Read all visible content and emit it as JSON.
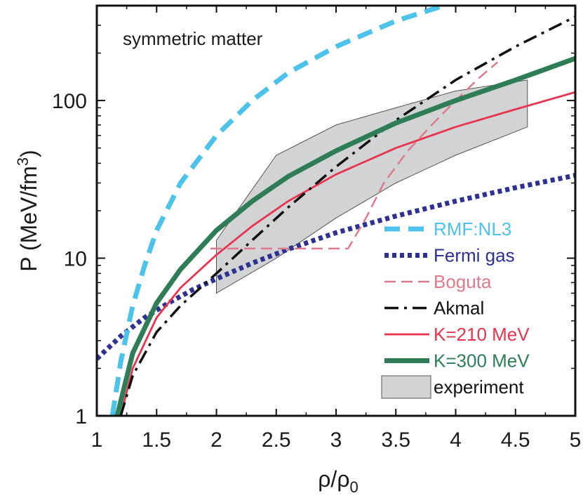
{
  "chart_data": {
    "type": "line",
    "title": "",
    "annotation": "symmetric matter",
    "xlabel": {
      "main": "ρ/ρ",
      "sub": "0"
    },
    "ylabel": {
      "main": "P (MeV/fm",
      "sup": "3",
      "close": ")"
    },
    "xlim": [
      1,
      5
    ],
    "ylim": [
      1,
      400
    ],
    "yscale": "log",
    "xticks": [
      1,
      1.5,
      2,
      2.5,
      3,
      3.5,
      4,
      4.5,
      5
    ],
    "xtick_labels": [
      "1",
      "1.5",
      "2",
      "2.5",
      "3",
      "3.5",
      "4",
      "4.5",
      "5"
    ],
    "yticks": [
      1,
      10,
      100
    ],
    "ytick_labels": [
      "1",
      "10",
      "100"
    ],
    "legend_position": "bottom-right",
    "series": [
      {
        "name": "RMF:NL3",
        "color": "#4dc3ec",
        "style": "dashed-thick",
        "x": [
          1.13,
          1.2,
          1.3,
          1.4,
          1.5,
          1.7,
          2.0,
          2.3,
          2.6,
          3.0,
          3.5,
          3.9
        ],
        "y": [
          1.0,
          2.2,
          5.0,
          9.0,
          15.0,
          30.0,
          60.0,
          100.0,
          150.0,
          220.0,
          320.0,
          400.0
        ]
      },
      {
        "name": "Fermi gas",
        "color": "#2e3192",
        "style": "dotted",
        "x": [
          1.0,
          1.2,
          1.4,
          1.6,
          1.8,
          2.0,
          2.3,
          2.6,
          3.0,
          3.5,
          4.0,
          4.5,
          5.0
        ],
        "y": [
          2.3,
          3.2,
          4.2,
          5.2,
          6.3,
          7.4,
          9.3,
          11.4,
          14.5,
          18.5,
          23.0,
          28.0,
          33.5
        ]
      },
      {
        "name": "Boguta",
        "color": "#dd7a8c",
        "style": "dashed",
        "x": [
          1.95,
          3.1,
          3.25,
          3.4,
          3.6,
          3.8,
          4.0,
          4.2,
          4.35
        ],
        "y": [
          11.5,
          11.5,
          18.0,
          30.0,
          48.0,
          70.0,
          100.0,
          140.0,
          175.0
        ]
      },
      {
        "name": "Akmal",
        "color": "#111111",
        "style": "dash-dot",
        "x": [
          1.2,
          1.3,
          1.5,
          1.7,
          2.0,
          2.3,
          2.6,
          3.0,
          3.5,
          4.0,
          4.5,
          5.0
        ],
        "y": [
          1.0,
          1.8,
          3.4,
          5.0,
          8.0,
          13.0,
          21.0,
          38.0,
          75.0,
          135.0,
          220.0,
          340.0
        ]
      },
      {
        "name": "K=210 MeV",
        "color": "#e8344e",
        "style": "solid",
        "x": [
          1.2,
          1.3,
          1.5,
          1.7,
          2.0,
          2.3,
          2.6,
          3.0,
          3.5,
          4.0,
          4.5,
          5.0
        ],
        "y": [
          1.0,
          2.0,
          4.2,
          6.5,
          10.5,
          16.0,
          23.0,
          34.0,
          50.0,
          68.0,
          88.0,
          113.0
        ]
      },
      {
        "name": "K=300 MeV",
        "color": "#2e7d56",
        "style": "solid-thick",
        "x": [
          1.17,
          1.3,
          1.5,
          1.7,
          2.0,
          2.3,
          2.6,
          3.0,
          3.5,
          4.0,
          4.5,
          5.0
        ],
        "y": [
          1.0,
          2.5,
          5.2,
          8.5,
          15.0,
          23.0,
          33.0,
          48.0,
          72.0,
          100.0,
          135.0,
          185.0
        ]
      }
    ],
    "band": {
      "name": "experiment",
      "color": "#d1d3d4",
      "edge_color": "#555555",
      "upper": {
        "x": [
          2.0,
          2.5,
          3.0,
          3.5,
          4.0,
          4.6
        ],
        "y": [
          13.0,
          45.0,
          70.0,
          90.0,
          115.0,
          135.0
        ]
      },
      "lower": {
        "x": [
          2.0,
          2.5,
          3.0,
          3.5,
          4.0,
          4.6
        ],
        "y": [
          6.0,
          10.0,
          18.0,
          30.0,
          45.0,
          68.0
        ]
      }
    }
  }
}
